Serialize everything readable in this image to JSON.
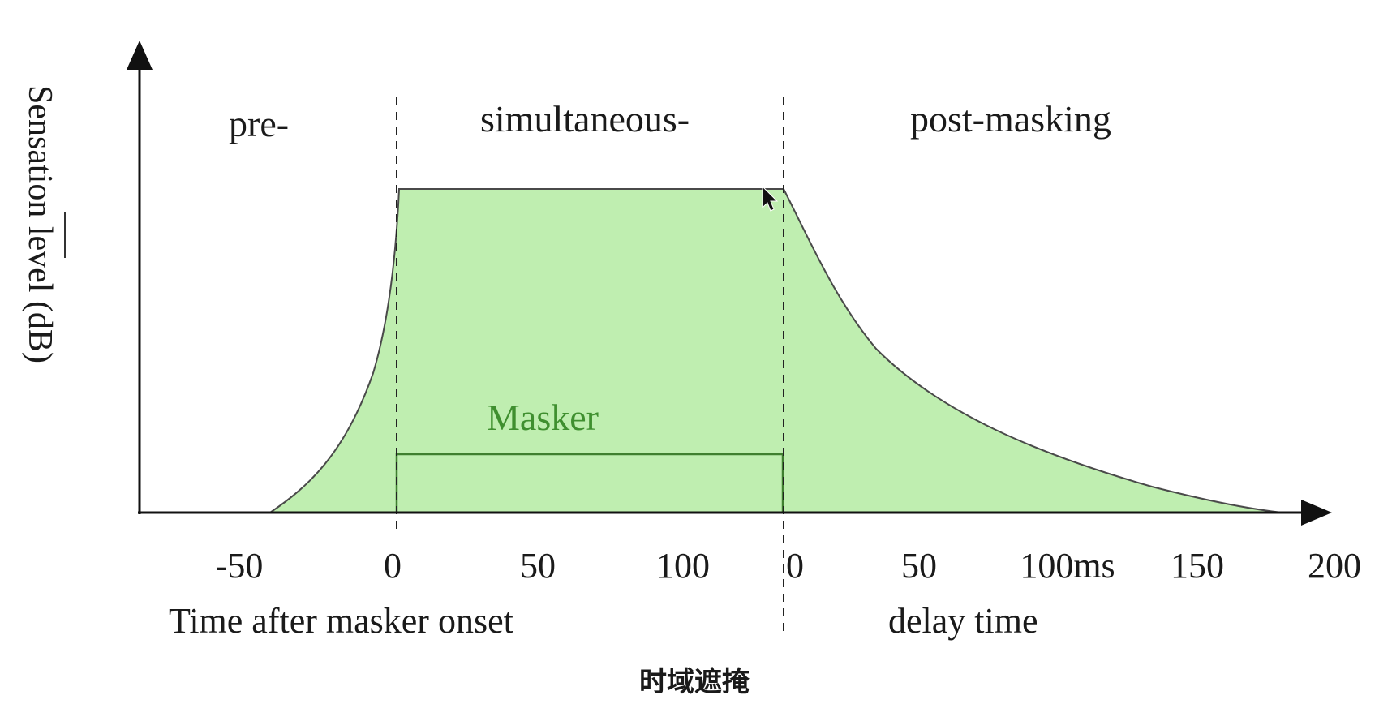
{
  "diagram": {
    "y_axis_label": "Sensation level (dB)",
    "regions": {
      "pre": "pre-",
      "simultaneous": "simultaneous-",
      "post": "post-masking"
    },
    "masker_label": "Masker",
    "ticks_left": [
      "-50",
      "0",
      "50",
      "100"
    ],
    "ticks_right": [
      "0",
      "50",
      "100ms",
      "150",
      "200"
    ],
    "x_label_left": "Time after masker onset",
    "x_label_right": "delay time",
    "caption": "时域遮掩",
    "colors": {
      "fill": "#bfeeb0",
      "curve": "#4a4a4a",
      "masker_box": "#3f7f2f",
      "axis": "#111111"
    }
  }
}
